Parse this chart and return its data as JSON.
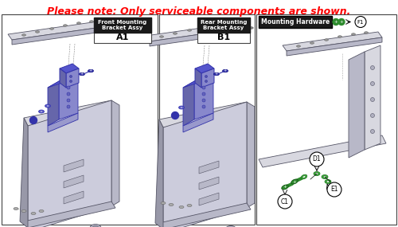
{
  "title": "Please note: Only serviceable components are shown.",
  "title_color": "#ff0000",
  "title_fontsize": 9.0,
  "bg_color": "#ffffff",
  "panel1_label": "Front Mounting\nBracket Assy",
  "panel1_sub": "A1",
  "panel2_label": "Rear Mounting\nBracket Assy",
  "panel2_sub": "B1",
  "panel3_label": "Mounting Hardware",
  "fig_width": 5.0,
  "fig_height": 2.85,
  "dpi": 100,
  "border_color": "#444444",
  "label_box_bg": "#1a1a1a",
  "label_box_fg": "#ffffff",
  "green_color": "#2e8b2e",
  "green_light": "#3aaa3a",
  "blue_color": "#3333aa",
  "blue_light": "#5555cc",
  "metal_light": "#d8d8e0",
  "metal_mid": "#b8b8c8",
  "metal_dark": "#9898a8",
  "dark_line": "#555566",
  "gray_line": "#aaaaaa"
}
